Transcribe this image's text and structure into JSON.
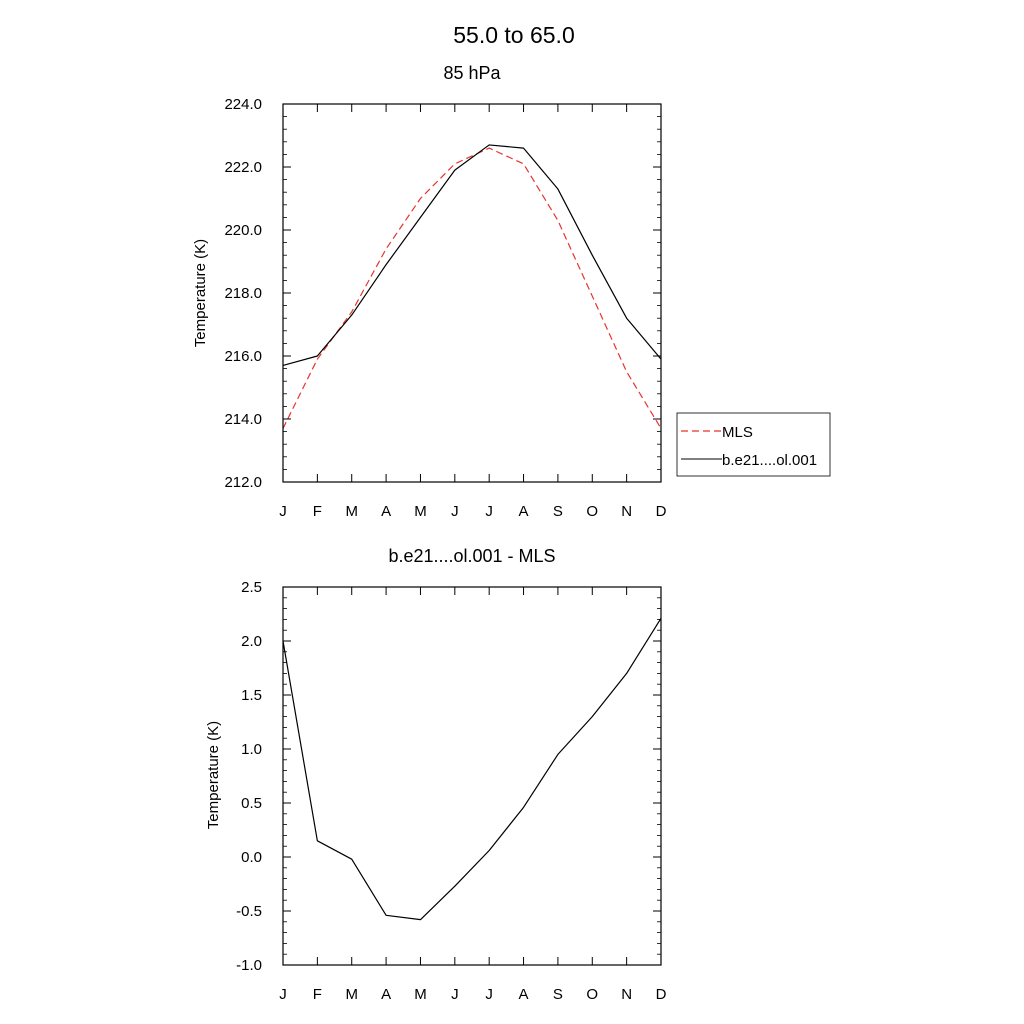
{
  "figure": {
    "title": "55.0 to  65.0"
  },
  "legend": {
    "entries": [
      {
        "name": "MLS",
        "color": "#e8332f",
        "dash": "dashed"
      },
      {
        "name": "b.e21....ol.001",
        "color": "#000000",
        "dash": "solid"
      }
    ]
  },
  "chart_data": [
    {
      "type": "line",
      "title": "85 hPa",
      "xlabel": "",
      "ylabel": "Temperature (K)",
      "categories": [
        "J",
        "F",
        "M",
        "A",
        "M",
        "J",
        "J",
        "A",
        "S",
        "O",
        "N",
        "D"
      ],
      "ylim": [
        212.0,
        224.0
      ],
      "yticks": [
        "212.0",
        "214.0",
        "216.0",
        "218.0",
        "220.0",
        "222.0",
        "224.0"
      ],
      "legend_position": "right",
      "series": [
        {
          "name": "MLS",
          "color": "#e8332f",
          "dash": "dashed",
          "values": [
            213.7,
            215.9,
            217.4,
            219.4,
            221.0,
            222.1,
            222.6,
            222.1,
            220.3,
            217.9,
            215.5,
            213.7
          ]
        },
        {
          "name": "b.e21....ol.001",
          "color": "#000000",
          "dash": "solid",
          "values": [
            215.7,
            216.0,
            217.3,
            218.9,
            220.4,
            221.9,
            222.7,
            222.6,
            221.3,
            219.2,
            217.2,
            215.9
          ]
        }
      ]
    },
    {
      "type": "line",
      "title": "b.e21....ol.001 - MLS",
      "xlabel": "",
      "ylabel": "Temperature (K)",
      "categories": [
        "J",
        "F",
        "M",
        "A",
        "M",
        "J",
        "J",
        "A",
        "S",
        "O",
        "N",
        "D"
      ],
      "ylim": [
        -1.0,
        2.5
      ],
      "yticks": [
        "-1.0",
        "-0.5",
        "0.0",
        "0.5",
        "1.0",
        "1.5",
        "2.0",
        "2.5"
      ],
      "series": [
        {
          "color": "#000000",
          "dash": "solid",
          "values": [
            2.0,
            0.15,
            -0.02,
            -0.54,
            -0.58,
            -0.27,
            0.06,
            0.46,
            0.95,
            1.3,
            1.7,
            2.21
          ]
        }
      ]
    }
  ]
}
